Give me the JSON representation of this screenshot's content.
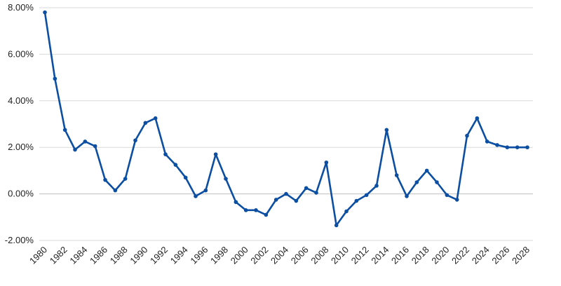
{
  "chart_data": {
    "type": "line",
    "title": "",
    "xlabel": "",
    "ylabel": "",
    "ylim": [
      -2,
      8
    ],
    "y_ticks": [
      {
        "value": -2,
        "label": "-2.00%"
      },
      {
        "value": 0,
        "label": "0.00%"
      },
      {
        "value": 2,
        "label": "2.00%"
      },
      {
        "value": 4,
        "label": "4.00%"
      },
      {
        "value": 6,
        "label": "6.00%"
      },
      {
        "value": 8,
        "label": "8.00%"
      }
    ],
    "x_ticks": [
      "1980",
      "1982",
      "1984",
      "1986",
      "1988",
      "1990",
      "1992",
      "1994",
      "1996",
      "1998",
      "2000",
      "2002",
      "2004",
      "2006",
      "2008",
      "2010",
      "2012",
      "2014",
      "2016",
      "2018",
      "2020",
      "2022",
      "2024",
      "2026",
      "2028"
    ],
    "grid": true,
    "legend": "none",
    "color": "#0b4ea2",
    "x": [
      1980,
      1981,
      1982,
      1983,
      1984,
      1985,
      1986,
      1987,
      1988,
      1989,
      1990,
      1991,
      1992,
      1993,
      1994,
      1995,
      1996,
      1997,
      1998,
      1999,
      2000,
      2001,
      2002,
      2003,
      2004,
      2005,
      2006,
      2007,
      2008,
      2009,
      2010,
      2011,
      2012,
      2013,
      2014,
      2015,
      2016,
      2017,
      2018,
      2019,
      2020,
      2021,
      2022,
      2023,
      2024,
      2025,
      2026,
      2027,
      2028
    ],
    "values": [
      7.8,
      4.95,
      2.75,
      1.9,
      2.25,
      2.05,
      0.6,
      0.15,
      0.65,
      2.3,
      3.05,
      3.25,
      1.7,
      1.25,
      0.7,
      -0.1,
      0.15,
      1.7,
      0.65,
      -0.35,
      -0.7,
      -0.7,
      -0.9,
      -0.25,
      0.0,
      -0.3,
      0.25,
      0.05,
      1.35,
      -1.35,
      -0.75,
      -0.3,
      -0.05,
      0.35,
      2.75,
      0.8,
      -0.1,
      0.5,
      1.0,
      0.5,
      -0.05,
      -0.25,
      2.5,
      3.25,
      2.25,
      2.1,
      2.0,
      2.0,
      2.0
    ]
  }
}
